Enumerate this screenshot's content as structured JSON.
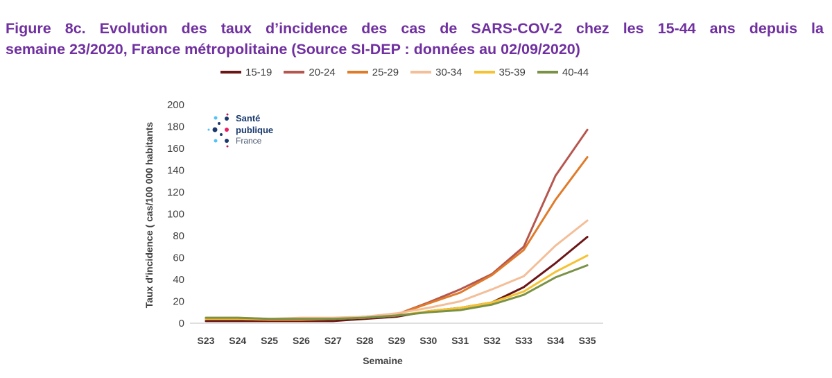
{
  "title": {
    "line1": "Figure 8c. Evolution des taux d’incidence des cas de SARS-COV-2 chez les 15-44 ans  depuis la",
    "line2": "semaine 23/2020, France métropolitaine (Source SI-DEP : données au 02/09/2020)"
  },
  "logo": {
    "line1": "Santé",
    "line2": "publique",
    "line3": "France"
  },
  "chart_data": {
    "type": "line",
    "title": "",
    "xlabel": "Semaine",
    "ylabel": "Taux d'incidence  ( cas/100 000 habitants",
    "ylim": [
      0,
      200
    ],
    "yticks": [
      0,
      20,
      40,
      60,
      80,
      100,
      120,
      140,
      160,
      180,
      200
    ],
    "grid": false,
    "legend": "top",
    "categories": [
      "S23",
      "S24",
      "S25",
      "S26",
      "S27",
      "S28",
      "S29",
      "S30",
      "S31",
      "S32",
      "S33",
      "S34",
      "S35"
    ],
    "series": [
      {
        "name": "15-19",
        "color": "#6B1516",
        "values": [
          2,
          2,
          2,
          2,
          2,
          4,
          6,
          11,
          14,
          19,
          33,
          55,
          79
        ]
      },
      {
        "name": "20-24",
        "color": "#B5574F",
        "values": [
          4,
          4,
          3,
          3,
          4,
          6,
          8,
          19,
          31,
          45,
          70,
          135,
          177
        ]
      },
      {
        "name": "25-29",
        "color": "#E07B2A",
        "values": [
          4,
          4,
          3,
          3,
          4,
          6,
          8,
          18,
          28,
          44,
          67,
          113,
          152
        ]
      },
      {
        "name": "30-34",
        "color": "#F3BE98",
        "values": [
          5,
          5,
          4,
          5,
          5,
          6,
          9,
          14,
          20,
          31,
          43,
          71,
          94
        ]
      },
      {
        "name": "35-39",
        "color": "#F5C232",
        "values": [
          4,
          4,
          4,
          4,
          4,
          5,
          7,
          11,
          14,
          19,
          29,
          47,
          62
        ]
      },
      {
        "name": "40-44",
        "color": "#7A9246",
        "values": [
          5,
          5,
          4,
          4,
          4,
          5,
          7,
          10,
          12,
          17,
          26,
          42,
          53
        ]
      }
    ]
  }
}
